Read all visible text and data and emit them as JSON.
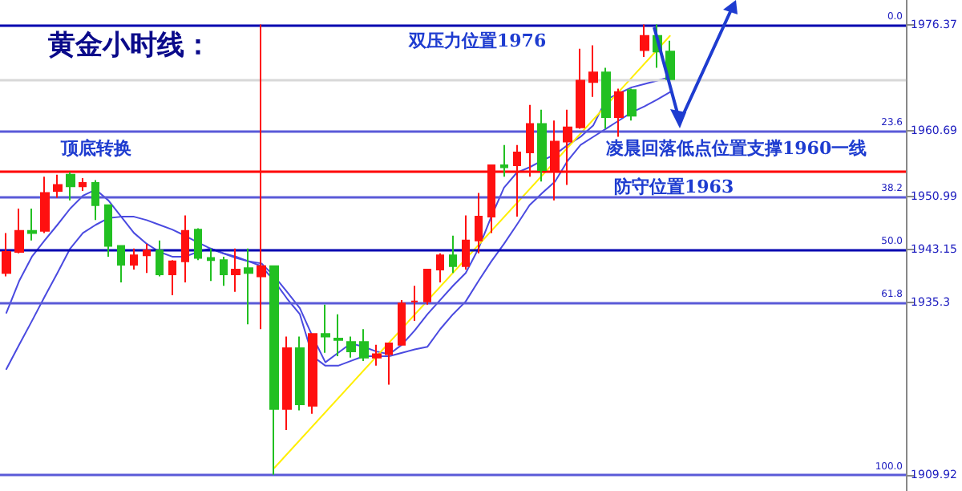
{
  "chart_data": {
    "type": "candlestick",
    "title": "黄金小时线：",
    "annotations": [
      "双压力位置1976",
      "顶底转换",
      "凌晨回落低点位置支撑1960一线",
      "防守位置1963",
      {
        "text": "0.0",
        "y": 1976.37
      },
      {
        "text": "23.6",
        "y": 1960.69
      },
      {
        "text": "38.2",
        "y": 1950.99
      },
      {
        "text": "50.0",
        "y": 1943.15
      },
      {
        "text": "61.8",
        "y": 1935.3
      },
      {
        "text": "100.0",
        "y": 1909.92
      }
    ],
    "categories": [
      null,
      null,
      null,
      null,
      null,
      null,
      null,
      null,
      null,
      null,
      null,
      null,
      null,
      null,
      null,
      null,
      null,
      null,
      null,
      null,
      null,
      null,
      null,
      null,
      null,
      null,
      null,
      null,
      null,
      null,
      null,
      null,
      null,
      null,
      null,
      null,
      null,
      null,
      null,
      null,
      null,
      null,
      null,
      null,
      null,
      null,
      null,
      null,
      null,
      null,
      null,
      null,
      null,
      null,
      null,
      null,
      null,
      null,
      null,
      null,
      null,
      null,
      null,
      null,
      null,
      null,
      null,
      null,
      null,
      null,
      null
    ],
    "ohlc": [
      [
        1939.7,
        1945.6,
        1939.2,
        1942.8
      ],
      [
        1942.8,
        1949.2,
        1942.6,
        1945.9
      ],
      [
        1945.9,
        1949.2,
        1944.5,
        1945.6
      ],
      [
        1945.9,
        1953.9,
        1945.6,
        1951.5
      ],
      [
        1951.8,
        1954.2,
        1950.8,
        1952.7
      ],
      [
        1954.2,
        1954.6,
        1950.4,
        1952.5
      ],
      [
        1952.5,
        1953.7,
        1951.8,
        1953.0
      ],
      [
        1953.0,
        1953.4,
        1947.5,
        1949.7
      ],
      [
        1949.7,
        1949.7,
        1942.1,
        1943.7
      ],
      [
        1943.7,
        1943.7,
        1938.3,
        1940.9
      ],
      [
        1940.9,
        1943.3,
        1940.2,
        1942.3
      ],
      [
        1942.3,
        1944.0,
        1939.7,
        1943.0
      ],
      [
        1943.0,
        1944.5,
        1939.2,
        1939.5
      ],
      [
        1939.5,
        1941.6,
        1936.4,
        1941.4
      ],
      [
        1941.4,
        1948.2,
        1938.3,
        1945.9
      ],
      [
        1946.1,
        1946.3,
        1941.6,
        1941.9
      ],
      [
        1941.9,
        1943.3,
        1938.5,
        1941.6
      ],
      [
        1941.6,
        1942.1,
        1937.8,
        1939.5
      ],
      [
        1939.5,
        1943.3,
        1936.9,
        1940.2
      ],
      [
        1940.4,
        1943.3,
        1932.1,
        1939.7
      ],
      [
        1939.2,
        1976.4,
        1931.4,
        1940.7
      ],
      [
        1940.7,
        1940.7,
        1909.9,
        1919.6
      ],
      [
        1919.6,
        1930.3,
        1916.5,
        1928.6
      ],
      [
        1928.6,
        1930.3,
        1919.4,
        1920.3
      ],
      [
        1920.1,
        1930.7,
        1918.9,
        1930.7
      ],
      [
        1930.7,
        1935.0,
        1927.9,
        1930.3
      ],
      [
        1930.0,
        1933.6,
        1927.4,
        1929.8
      ],
      [
        1929.5,
        1930.3,
        1927.2,
        1928.1
      ],
      [
        1929.5,
        1931.4,
        1926.7,
        1927.2
      ],
      [
        1927.2,
        1929.1,
        1926.0,
        1927.7
      ],
      [
        1927.7,
        1929.3,
        1923.2,
        1929.3
      ],
      [
        1929.1,
        1935.7,
        1929.1,
        1935.2
      ],
      [
        1935.5,
        1937.8,
        1932.6,
        1935.5
      ],
      [
        1935.5,
        1940.2,
        1935.0,
        1940.2
      ],
      [
        1940.2,
        1942.6,
        1938.3,
        1942.3
      ],
      [
        1942.3,
        1945.2,
        1939.7,
        1940.7
      ],
      [
        1940.7,
        1948.2,
        1940.2,
        1944.5
      ],
      [
        1944.5,
        1951.5,
        1942.6,
        1948.0
      ],
      [
        1948.0,
        1955.6,
        1945.6,
        1955.6
      ],
      [
        1955.6,
        1958.6,
        1953.9,
        1955.3
      ],
      [
        1955.6,
        1958.6,
        1948.0,
        1957.5
      ],
      [
        1957.5,
        1964.5,
        1953.9,
        1961.7
      ],
      [
        1961.7,
        1963.8,
        1953.2,
        1954.9
      ],
      [
        1954.9,
        1962.2,
        1950.4,
        1959.1
      ],
      [
        1959.1,
        1963.8,
        1952.7,
        1961.2
      ],
      [
        1961.2,
        1972.8,
        1961.0,
        1968.1
      ],
      [
        1967.9,
        1973.3,
        1965.7,
        1969.3
      ],
      [
        1969.3,
        1970.0,
        1961.0,
        1962.7
      ],
      [
        1962.7,
        1966.9,
        1959.8,
        1966.4
      ],
      [
        1966.7,
        1966.9,
        1962.2,
        1962.9
      ],
      [
        1972.6,
        1976.4,
        1971.6,
        1974.7
      ],
      [
        1974.7,
        1976.4,
        1970.0,
        1972.4
      ],
      [
        1972.4,
        1974.0,
        1967.6,
        1968.3
      ],
      null,
      null,
      null,
      null,
      null,
      null,
      null,
      null,
      null,
      null,
      null,
      null,
      null,
      null,
      null,
      null,
      null,
      null
    ],
    "series": [
      {
        "type": "line",
        "color": "#4a4ae0",
        "values": [
          1933.8,
          1938.5,
          1942.1,
          1944.5,
          1946.8,
          1949.2,
          1951.1,
          1952.0,
          1950.4,
          1948.0,
          1945.6,
          1944.0,
          1942.8,
          1942.1,
          1942.1,
          1942.8,
          1943.3,
          1942.6,
          1942.1,
          1941.4,
          1941.1,
          1939.2,
          1936.9,
          1934.5,
          1930.3,
          1926.5,
          1927.9,
          1929.3,
          1928.8,
          1928.1,
          1927.7,
          1929.1,
          1931.2,
          1933.6,
          1935.7,
          1937.8,
          1939.7,
          1943.3,
          1948.0,
          1952.3,
          1954.5,
          1955.3,
          1956.3,
          1957.2,
          1958.6,
          1959.8,
          1961.5,
          1965.3,
          1966.2,
          1967.1,
          1967.6,
          1968.1,
          1968.6,
          null,
          null,
          null,
          null,
          null,
          null,
          null,
          null,
          null,
          null,
          null,
          null,
          null,
          null,
          null,
          null,
          null,
          null
        ]
      },
      {
        "type": "line",
        "color": "#4a4ae0",
        "values": [
          1925.5,
          1929.1,
          1932.6,
          1936.2,
          1939.7,
          1943.3,
          1945.6,
          1946.8,
          1947.8,
          1948.0,
          1948.0,
          1947.5,
          1946.8,
          1946.1,
          1945.2,
          1944.2,
          1943.3,
          1942.6,
          1941.9,
          1941.4,
          1940.7,
          1938.5,
          1935.9,
          1933.6,
          1927.4,
          1926.0,
          1926.0,
          1926.7,
          1927.4,
          1927.4,
          1927.4,
          1927.9,
          1928.4,
          1928.8,
          1931.4,
          1933.6,
          1935.5,
          1938.5,
          1941.4,
          1944.0,
          1946.8,
          1949.7,
          1951.5,
          1953.2,
          1956.3,
          1958.6,
          1959.8,
          1961.0,
          1962.2,
          1963.4,
          1964.3,
          1965.3,
          1966.4,
          null,
          null,
          null,
          null,
          null,
          null,
          null,
          null,
          null,
          null,
          null,
          null,
          null,
          null,
          null,
          null,
          null,
          null
        ]
      },
      {
        "type": "line",
        "color": "#ffee00",
        "values": [
          null,
          null,
          null,
          null,
          null,
          null,
          null,
          null,
          null,
          null,
          null,
          null,
          null,
          null,
          null,
          null,
          null,
          null,
          null,
          null,
          null,
          1910.9,
          null,
          null,
          null,
          null,
          null,
          null,
          null,
          null,
          null,
          null,
          null,
          null,
          null,
          null,
          null,
          null,
          null,
          null,
          null,
          null,
          null,
          null,
          null,
          null,
          null,
          null,
          null,
          null,
          null,
          null,
          1974.7,
          null,
          null,
          null,
          null,
          null,
          null,
          null,
          null,
          null,
          null,
          null,
          null,
          null,
          null,
          null,
          null,
          null,
          null
        ]
      }
    ],
    "ylim": [
      1907.5,
      1980
    ],
    "yticks": [
      1976.37,
      1960.69,
      1950.99,
      1943.15,
      1935.3,
      1909.92
    ],
    "ref_lines": [
      {
        "axis": "y",
        "value": 1976.37,
        "color": "#0000b0"
      },
      {
        "axis": "y",
        "value": 1960.69,
        "color": "#5a5ad8"
      },
      {
        "axis": "y",
        "value": 1950.99,
        "color": "#5a5ad8"
      },
      {
        "axis": "y",
        "value": 1943.15,
        "color": "#0000b0"
      },
      {
        "axis": "y",
        "value": 1935.3,
        "color": "#5a5ad8"
      },
      {
        "axis": "y",
        "value": 1909.92,
        "color": "#5a5ad8"
      },
      {
        "axis": "y",
        "value": 1954.6,
        "color": "#ff0000"
      },
      {
        "axis": "y",
        "value": 1968.3,
        "color": "#d8d8d8"
      }
    ],
    "tick_labels": "y",
    "grid": false,
    "marker": "none",
    "line_style": "solid"
  }
}
